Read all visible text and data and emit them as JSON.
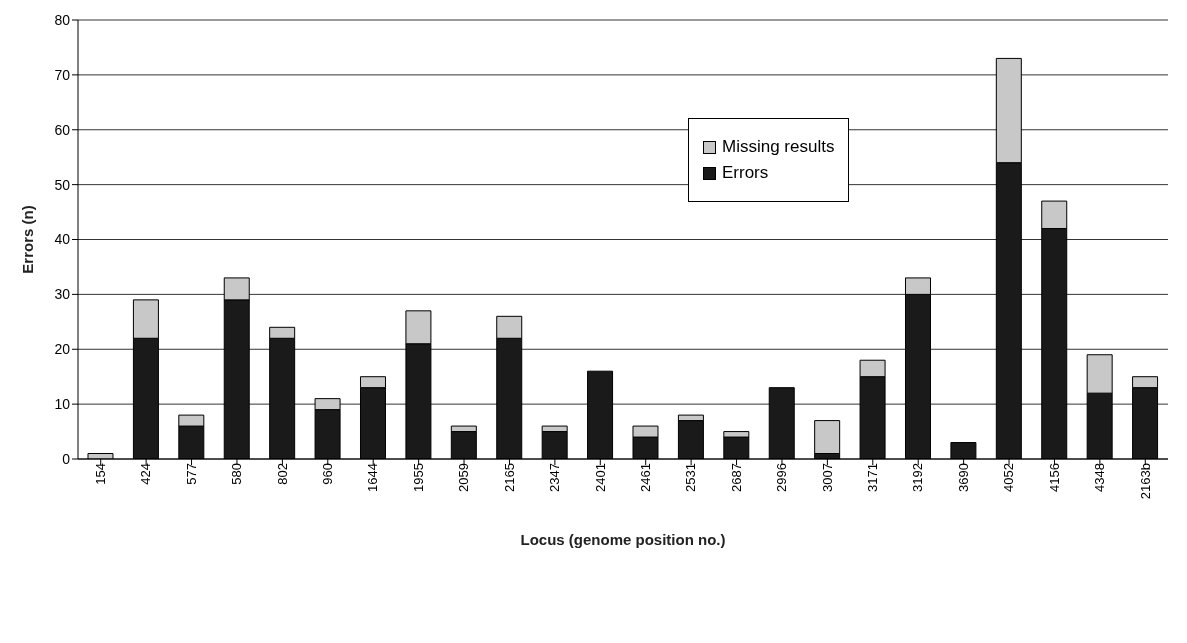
{
  "chart_data": {
    "type": "bar",
    "stacked": true,
    "xlabel": "Locus (genome position no.)",
    "ylabel": "Errors (n)",
    "categories": [
      "154",
      "424",
      "577",
      "580",
      "802",
      "960",
      "1644",
      "1955",
      "2059",
      "2165",
      "2347",
      "2401",
      "2461",
      "2531",
      "2687",
      "2996",
      "3007",
      "3171",
      "3192",
      "3690",
      "4052",
      "4156",
      "4348",
      "2163b"
    ],
    "series": [
      {
        "name": "Errors",
        "color": "#1a1a1a",
        "values": [
          0,
          22,
          6,
          29,
          22,
          9,
          13,
          21,
          5,
          22,
          5,
          16,
          4,
          7,
          4,
          13,
          1,
          15,
          30,
          3,
          54,
          42,
          12,
          13
        ]
      },
      {
        "name": "Missing results",
        "color": "#c8c8c8",
        "values": [
          1,
          7,
          2,
          4,
          2,
          2,
          2,
          6,
          1,
          4,
          1,
          0,
          2,
          1,
          1,
          0,
          6,
          3,
          3,
          0,
          19,
          5,
          7,
          2
        ]
      }
    ],
    "ylim": [
      0,
      80
    ],
    "yticks": [
      0,
      10,
      20,
      30,
      40,
      50,
      60,
      70,
      80
    ],
    "grid": "y",
    "legend": "top right"
  }
}
